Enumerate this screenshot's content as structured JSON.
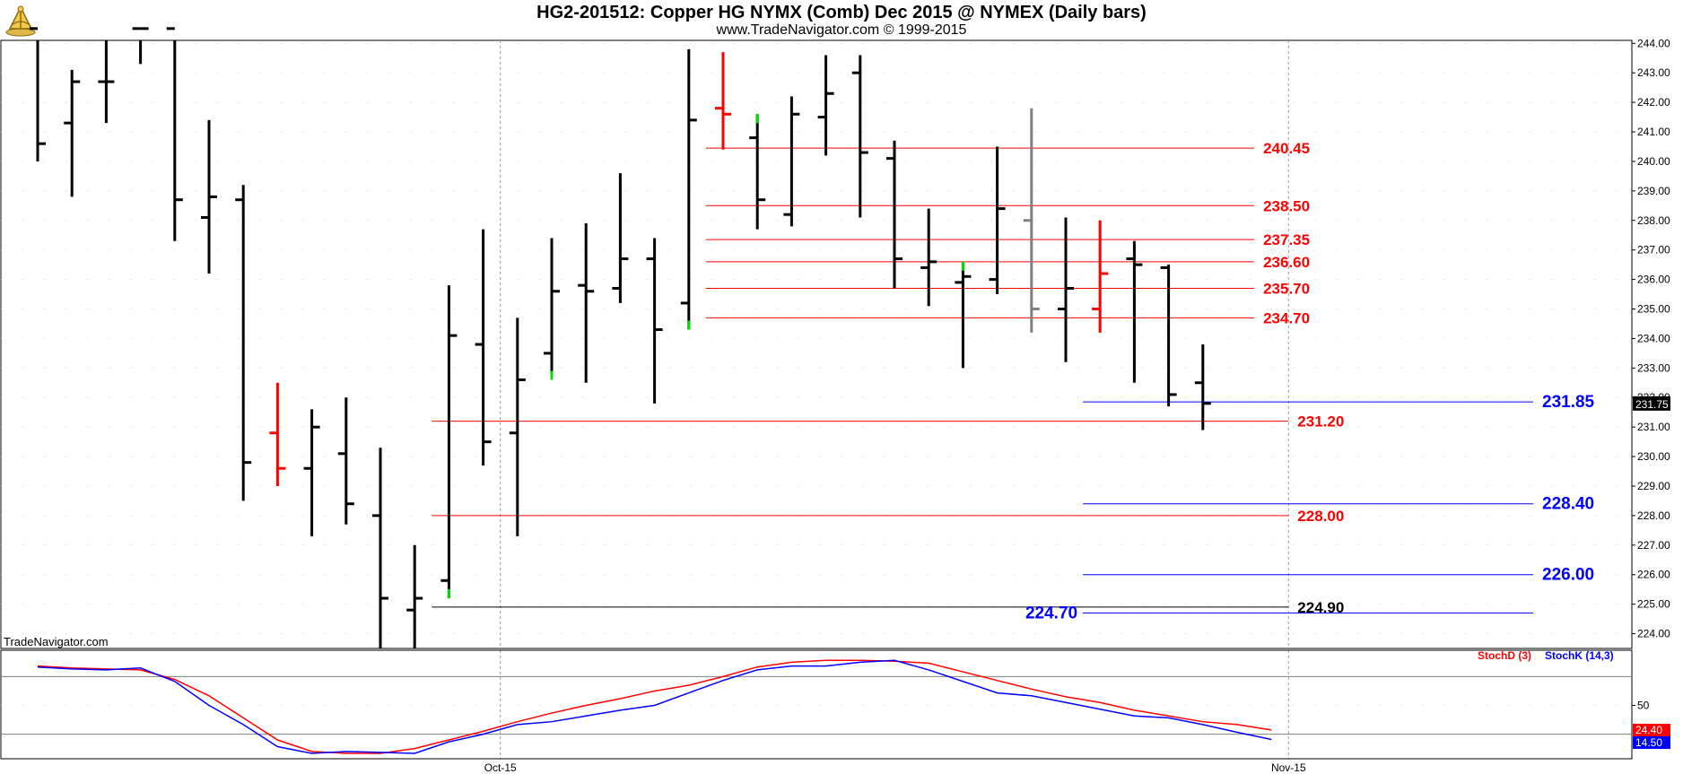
{
  "header": {
    "title": "HG2-201512:  Copper HG NYMX (Comb) Dec 2015 @ NYMEX  (Daily bars)",
    "copyright": "www.TradeNavigator.com © 1999-2015",
    "logo_icon": "sextant-logo-icon"
  },
  "watermark": "TradeNavigator.com",
  "colors": {
    "bar": "#000000",
    "bar_red": "#ff0000",
    "bar_gray": "#808080",
    "bar_green": "#00dd00",
    "level_red": "#ff0000",
    "level_blue": "#0000ff",
    "level_black": "#000000",
    "stoch_d": "#ff0000",
    "stoch_k": "#0000ff"
  },
  "chart_data": [
    {
      "type": "ohlc",
      "ylim": [
        223.5,
        244.1
      ],
      "yticks": [
        "224.00",
        "225.00",
        "226.00",
        "227.00",
        "228.00",
        "229.00",
        "230.00",
        "231.00",
        "232.00",
        "233.00",
        "234.00",
        "235.00",
        "236.00",
        "237.00",
        "238.00",
        "239.00",
        "240.00",
        "241.00",
        "242.00",
        "243.00",
        "244.00"
      ],
      "xticks": [
        {
          "label": "Oct-15",
          "bar_index": 13.5
        },
        {
          "label": "Nov-15",
          "bar_index": 36.5
        }
      ],
      "last_price": "231.75",
      "bars": [
        {
          "o": 244.5,
          "h": 244.5,
          "l": 240.0,
          "c": 240.6,
          "col": "black"
        },
        {
          "o": 241.3,
          "h": 243.1,
          "l": 238.8,
          "c": 242.7,
          "col": "black"
        },
        {
          "o": 242.7,
          "h": 244.5,
          "l": 241.3,
          "c": 242.7,
          "col": "black"
        },
        {
          "o": 244.5,
          "h": 244.5,
          "l": 243.3,
          "c": 244.5,
          "col": "black"
        },
        {
          "o": 244.5,
          "h": 244.5,
          "l": 237.3,
          "c": 238.7,
          "col": "black"
        },
        {
          "o": 238.1,
          "h": 241.4,
          "l": 236.2,
          "c": 238.8,
          "col": "black"
        },
        {
          "o": 238.7,
          "h": 239.2,
          "l": 228.5,
          "c": 229.8,
          "col": "black"
        },
        {
          "o": 230.8,
          "h": 232.5,
          "l": 229.0,
          "c": 229.6,
          "col": "red"
        },
        {
          "o": 229.6,
          "h": 231.6,
          "l": 227.3,
          "c": 231.0,
          "col": "black"
        },
        {
          "o": 230.1,
          "h": 232.0,
          "l": 227.7,
          "c": 228.4,
          "col": "black"
        },
        {
          "o": 228.0,
          "h": 230.3,
          "l": 223.5,
          "c": 225.2,
          "col": "black"
        },
        {
          "o": 224.8,
          "h": 227.0,
          "l": 223.5,
          "c": 225.2,
          "col": "black"
        },
        {
          "o": 225.8,
          "h": 235.8,
          "l": 225.2,
          "c": 234.1,
          "col": "black",
          "low_tick": "green"
        },
        {
          "o": 233.8,
          "h": 237.7,
          "l": 229.7,
          "c": 230.5,
          "col": "black"
        },
        {
          "o": 230.8,
          "h": 234.7,
          "l": 227.3,
          "c": 232.6,
          "col": "black"
        },
        {
          "o": 233.5,
          "h": 237.4,
          "l": 232.6,
          "c": 235.6,
          "col": "black",
          "low_tick": "green"
        },
        {
          "o": 235.8,
          "h": 237.9,
          "l": 232.5,
          "c": 235.6,
          "col": "black"
        },
        {
          "o": 235.7,
          "h": 239.6,
          "l": 235.2,
          "c": 236.7,
          "col": "black"
        },
        {
          "o": 236.7,
          "h": 237.4,
          "l": 231.8,
          "c": 234.3,
          "col": "black"
        },
        {
          "o": 235.2,
          "h": 243.8,
          "l": 234.3,
          "c": 241.4,
          "col": "black",
          "low_tick": "green"
        },
        {
          "o": 241.8,
          "h": 243.7,
          "l": 240.4,
          "c": 241.6,
          "col": "red"
        },
        {
          "o": 240.8,
          "h": 241.6,
          "l": 237.7,
          "c": 238.7,
          "col": "black",
          "high_tick": "green"
        },
        {
          "o": 238.2,
          "h": 242.2,
          "l": 237.8,
          "c": 241.6,
          "col": "black"
        },
        {
          "o": 241.5,
          "h": 243.6,
          "l": 240.2,
          "c": 242.3,
          "col": "black"
        },
        {
          "o": 243.0,
          "h": 243.6,
          "l": 238.1,
          "c": 240.3,
          "col": "black"
        },
        {
          "o": 240.1,
          "h": 240.7,
          "l": 235.7,
          "c": 236.7,
          "col": "black"
        },
        {
          "o": 236.4,
          "h": 238.4,
          "l": 235.1,
          "c": 236.6,
          "col": "black"
        },
        {
          "o": 235.9,
          "h": 236.6,
          "l": 233.0,
          "c": 236.1,
          "col": "black",
          "high_tick": "green"
        },
        {
          "o": 236.0,
          "h": 240.5,
          "l": 235.5,
          "c": 238.4,
          "col": "black"
        },
        {
          "o": 238.0,
          "h": 241.8,
          "l": 234.2,
          "c": 235.0,
          "col": "gray"
        },
        {
          "o": 235.0,
          "h": 238.1,
          "l": 233.2,
          "c": 235.7,
          "col": "black"
        },
        {
          "o": 235.0,
          "h": 238.0,
          "l": 234.2,
          "c": 236.2,
          "col": "red"
        },
        {
          "o": 236.7,
          "h": 237.3,
          "l": 232.5,
          "c": 236.5,
          "col": "black"
        },
        {
          "o": 236.4,
          "h": 236.5,
          "l": 231.7,
          "c": 232.1,
          "col": "black"
        },
        {
          "o": 232.5,
          "h": 233.8,
          "l": 230.9,
          "c": 231.8,
          "col": "black"
        }
      ],
      "levels": [
        {
          "value": 240.45,
          "label": "240.45",
          "color": "red",
          "from_bar": 19.5,
          "to_bar": 35.5,
          "label_pos": "right-of-line"
        },
        {
          "value": 238.5,
          "label": "238.50",
          "color": "red",
          "from_bar": 19.5,
          "to_bar": 35.5,
          "label_pos": "right-of-line"
        },
        {
          "value": 237.35,
          "label": "237.35",
          "color": "red",
          "from_bar": 19.5,
          "to_bar": 35.5,
          "label_pos": "right-of-line"
        },
        {
          "value": 236.6,
          "label": "236.60",
          "color": "red",
          "from_bar": 19.5,
          "to_bar": 35.5,
          "label_pos": "right-of-line"
        },
        {
          "value": 235.7,
          "label": "235.70",
          "color": "red",
          "from_bar": 19.5,
          "to_bar": 35.5,
          "label_pos": "right-of-line"
        },
        {
          "value": 234.7,
          "label": "234.70",
          "color": "red",
          "from_bar": 19.5,
          "to_bar": 35.5,
          "label_pos": "right-of-line"
        },
        {
          "value": 231.2,
          "label": "231.20",
          "color": "red",
          "from_bar": 11.5,
          "to_bar": 36.5,
          "label_pos": "right-of-line"
        },
        {
          "value": 228.0,
          "label": "228.00",
          "color": "red",
          "from_bar": 11.5,
          "to_bar": 36.5,
          "label_pos": "right-of-line"
        },
        {
          "value": 224.9,
          "label": "224.90",
          "color": "black",
          "from_bar": 11.5,
          "to_bar": 36.5,
          "label_pos": "right-of-line"
        },
        {
          "value": 231.85,
          "label": "231.85",
          "color": "blue",
          "from_bar": 30.5,
          "to_bar": 45.0,
          "label_pos": "right-of-line"
        },
        {
          "value": 228.4,
          "label": "228.40",
          "color": "blue",
          "from_bar": 30.5,
          "to_bar": 45.0,
          "label_pos": "right-of-line"
        },
        {
          "value": 226.0,
          "label": "226.00",
          "color": "blue",
          "from_bar": 30.5,
          "to_bar": 45.0,
          "label_pos": "right-of-line"
        },
        {
          "value": 224.7,
          "label": "224.70",
          "color": "blue",
          "from_bar": 30.5,
          "to_bar": 45.0,
          "label_pos": "left-of-line"
        }
      ]
    },
    {
      "type": "line",
      "ylim": [
        0,
        100
      ],
      "yticks": [
        "50"
      ],
      "reference_lines": [
        80,
        20
      ],
      "legend": [
        {
          "name": "StochD (3)",
          "color": "red"
        },
        {
          "name": "StochK (14,3)",
          "color": "blue"
        }
      ],
      "last_values": {
        "d": "24.40",
        "k": "14.50"
      },
      "series": [
        {
          "name": "StochD (3)",
          "values": [
            91,
            89,
            88,
            87,
            77,
            60,
            37,
            14,
            2,
            0,
            0,
            5,
            14,
            23,
            33,
            42,
            50,
            57,
            65,
            71,
            80,
            90,
            95,
            97,
            97,
            96,
            94,
            85,
            76,
            67,
            59,
            53,
            45,
            39,
            33,
            30,
            24.4
          ]
        },
        {
          "name": "StochK (14,3)",
          "values": [
            90,
            88,
            87,
            89,
            75,
            50,
            30,
            7,
            0,
            2,
            1,
            0,
            12,
            20,
            30,
            33,
            39,
            45,
            50,
            63,
            76,
            87,
            91,
            91,
            95,
            97,
            87,
            75,
            63,
            60,
            53,
            46,
            39,
            37,
            30,
            22,
            14.5
          ]
        }
      ]
    }
  ]
}
